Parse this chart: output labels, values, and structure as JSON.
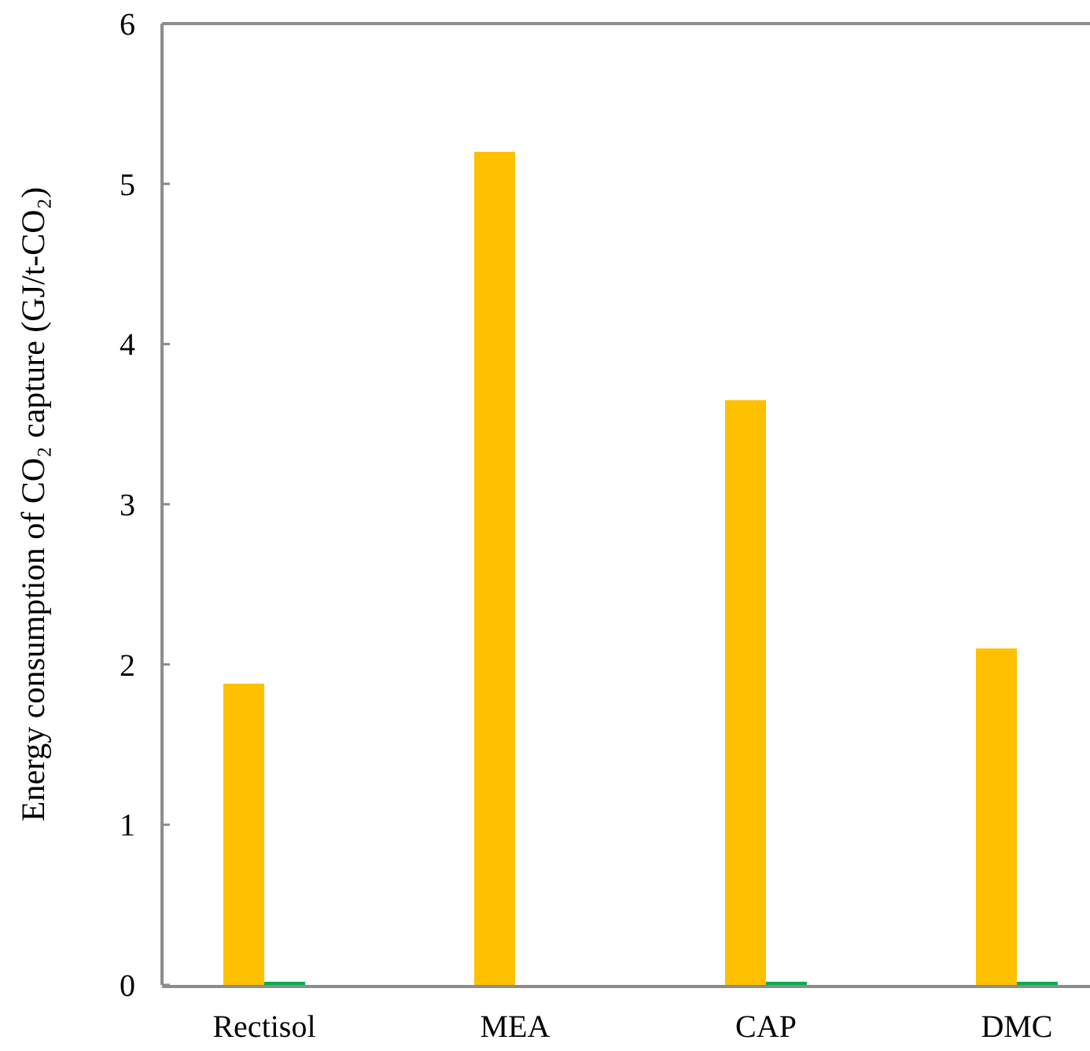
{
  "chart_data": {
    "type": "bar",
    "ylabel": "Energy consumption of CO₂ capture (GJ/t-CO₂)",
    "categories": [
      "Rectisol",
      "MEA",
      "CAP",
      "DMC"
    ],
    "series": [
      {
        "color": "#ffc000",
        "values": [
          1.88,
          5.2,
          3.65,
          2.1
        ]
      },
      {
        "color": "#00b050",
        "values": [
          0.02,
          null,
          0.02,
          0.02
        ]
      }
    ],
    "ylim": [
      0,
      6
    ],
    "yticks": [
      0,
      1,
      2,
      3,
      4,
      5,
      6
    ],
    "grid": false
  }
}
